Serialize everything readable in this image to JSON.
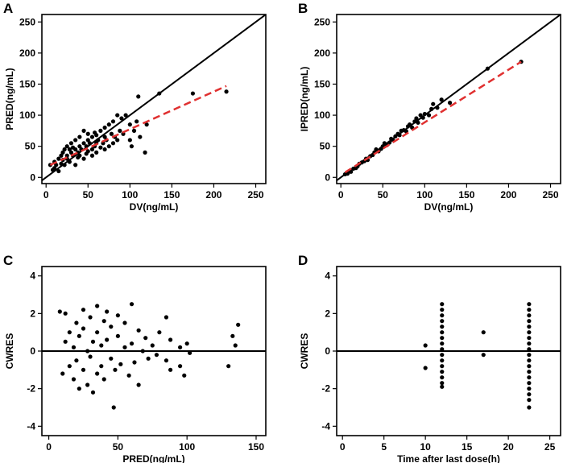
{
  "chart_data": [
    {
      "panel": "A",
      "type": "scatter",
      "xlabel": "DV(ng/mL)",
      "ylabel": "PRED(ng/mL)",
      "xlim": [
        -5,
        262
      ],
      "ylim": [
        -10,
        262
      ],
      "xticks": [
        0,
        50,
        100,
        150,
        200,
        250
      ],
      "yticks": [
        0,
        50,
        100,
        150,
        200,
        250
      ],
      "identity_line": true,
      "trend_line": {
        "color": "#e03030",
        "x": [
          5,
          215
        ],
        "y": [
          20,
          147
        ]
      },
      "points": [
        [
          5,
          20
        ],
        [
          8,
          12
        ],
        [
          10,
          15
        ],
        [
          10,
          25
        ],
        [
          12,
          20
        ],
        [
          15,
          10
        ],
        [
          15,
          30
        ],
        [
          18,
          35
        ],
        [
          18,
          22
        ],
        [
          20,
          28
        ],
        [
          20,
          40
        ],
        [
          22,
          20
        ],
        [
          22,
          45
        ],
        [
          25,
          35
        ],
        [
          25,
          30
        ],
        [
          25,
          50
        ],
        [
          28,
          45
        ],
        [
          28,
          25
        ],
        [
          30,
          40
        ],
        [
          30,
          55
        ],
        [
          32,
          35
        ],
        [
          32,
          48
        ],
        [
          35,
          20
        ],
        [
          35,
          45
        ],
        [
          35,
          60
        ],
        [
          38,
          40
        ],
        [
          38,
          32
        ],
        [
          40,
          50
        ],
        [
          40,
          35
        ],
        [
          40,
          65
        ],
        [
          42,
          45
        ],
        [
          45,
          55
        ],
        [
          45,
          30
        ],
        [
          45,
          75
        ],
        [
          48,
          50
        ],
        [
          48,
          38
        ],
        [
          50,
          60
        ],
        [
          50,
          42
        ],
        [
          50,
          70
        ],
        [
          52,
          55
        ],
        [
          55,
          45
        ],
        [
          55,
          65
        ],
        [
          55,
          35
        ],
        [
          58,
          72
        ],
        [
          58,
          50
        ],
        [
          60,
          40
        ],
        [
          60,
          55
        ],
        [
          60,
          68
        ],
        [
          62,
          60
        ],
        [
          65,
          48
        ],
        [
          65,
          75
        ],
        [
          68,
          55
        ],
        [
          70,
          65
        ],
        [
          70,
          45
        ],
        [
          70,
          80
        ],
        [
          72,
          60
        ],
        [
          75,
          85
        ],
        [
          75,
          50
        ],
        [
          78,
          70
        ],
        [
          80,
          55
        ],
        [
          80,
          90
        ],
        [
          82,
          65
        ],
        [
          85,
          100
        ],
        [
          85,
          60
        ],
        [
          88,
          75
        ],
        [
          90,
          95
        ],
        [
          92,
          70
        ],
        [
          95,
          100
        ],
        [
          100,
          60
        ],
        [
          100,
          85
        ],
        [
          102,
          50
        ],
        [
          105,
          75
        ],
        [
          108,
          90
        ],
        [
          110,
          130
        ],
        [
          112,
          65
        ],
        [
          118,
          40
        ],
        [
          120,
          85
        ],
        [
          135,
          135
        ],
        [
          175,
          135
        ],
        [
          215,
          138
        ]
      ]
    },
    {
      "panel": "B",
      "type": "scatter",
      "xlabel": "DV(ng/mL)",
      "ylabel": "IPRED(ng/mL)",
      "xlim": [
        -5,
        262
      ],
      "ylim": [
        -10,
        262
      ],
      "xticks": [
        0,
        50,
        100,
        150,
        200,
        250
      ],
      "yticks": [
        0,
        50,
        100,
        150,
        200,
        250
      ],
      "identity_line": true,
      "trend_line": {
        "color": "#e03030",
        "x": [
          5,
          215
        ],
        "y": [
          8,
          186
        ]
      },
      "points": [
        [
          5,
          5
        ],
        [
          8,
          6
        ],
        [
          10,
          10
        ],
        [
          12,
          9
        ],
        [
          15,
          14
        ],
        [
          18,
          15
        ],
        [
          20,
          18
        ],
        [
          22,
          22
        ],
        [
          25,
          24
        ],
        [
          28,
          26
        ],
        [
          30,
          30
        ],
        [
          32,
          28
        ],
        [
          35,
          34
        ],
        [
          38,
          36
        ],
        [
          40,
          40
        ],
        [
          42,
          45
        ],
        [
          45,
          42
        ],
        [
          48,
          46
        ],
        [
          50,
          50
        ],
        [
          52,
          55
        ],
        [
          55,
          52
        ],
        [
          58,
          56
        ],
        [
          60,
          62
        ],
        [
          62,
          60
        ],
        [
          65,
          66
        ],
        [
          68,
          70
        ],
        [
          70,
          68
        ],
        [
          72,
          75
        ],
        [
          75,
          76
        ],
        [
          78,
          74
        ],
        [
          80,
          82
        ],
        [
          82,
          85
        ],
        [
          85,
          80
        ],
        [
          88,
          90
        ],
        [
          90,
          95
        ],
        [
          92,
          88
        ],
        [
          95,
          100
        ],
        [
          98,
          96
        ],
        [
          100,
          102
        ],
        [
          105,
          100
        ],
        [
          108,
          110
        ],
        [
          110,
          118
        ],
        [
          115,
          112
        ],
        [
          120,
          125
        ],
        [
          130,
          120
        ],
        [
          175,
          175
        ],
        [
          215,
          186
        ]
      ]
    },
    {
      "panel": "C",
      "type": "scatter",
      "xlabel": "PRED(ng/mL)",
      "ylabel": "CWRES",
      "xlim": [
        -5,
        157
      ],
      "ylim": [
        -4.5,
        4.5
      ],
      "xticks": [
        0,
        50,
        100,
        150
      ],
      "yticks": [
        -4,
        -2,
        0,
        2,
        4
      ],
      "zero_line": true,
      "points": [
        [
          8,
          2.1
        ],
        [
          10,
          -1.2
        ],
        [
          12,
          0.5
        ],
        [
          12,
          2.0
        ],
        [
          15,
          -0.8
        ],
        [
          15,
          1.0
        ],
        [
          18,
          -1.5
        ],
        [
          18,
          0.2
        ],
        [
          20,
          1.5
        ],
        [
          20,
          -0.5
        ],
        [
          22,
          -2.0
        ],
        [
          22,
          0.8
        ],
        [
          25,
          1.2
        ],
        [
          25,
          -1.0
        ],
        [
          25,
          2.2
        ],
        [
          28,
          0.0
        ],
        [
          28,
          -1.8
        ],
        [
          30,
          1.8
        ],
        [
          30,
          -0.3
        ],
        [
          32,
          0.5
        ],
        [
          32,
          -2.2
        ],
        [
          35,
          1.0
        ],
        [
          35,
          -1.2
        ],
        [
          35,
          2.4
        ],
        [
          38,
          0.3
        ],
        [
          38,
          -0.8
        ],
        [
          40,
          1.6
        ],
        [
          40,
          -1.5
        ],
        [
          42,
          0.6
        ],
        [
          42,
          2.1
        ],
        [
          45,
          -0.4
        ],
        [
          45,
          1.3
        ],
        [
          47,
          -3.0
        ],
        [
          48,
          -1.0
        ],
        [
          50,
          0.8
        ],
        [
          50,
          1.9
        ],
        [
          52,
          -0.7
        ],
        [
          55,
          0.2
        ],
        [
          55,
          1.5
        ],
        [
          58,
          -1.3
        ],
        [
          60,
          2.5
        ],
        [
          60,
          0.4
        ],
        [
          62,
          -0.6
        ],
        [
          65,
          1.1
        ],
        [
          65,
          -1.8
        ],
        [
          68,
          0.0
        ],
        [
          70,
          0.7
        ],
        [
          72,
          -0.4
        ],
        [
          75,
          0.3
        ],
        [
          78,
          -0.2
        ],
        [
          80,
          1.0
        ],
        [
          85,
          1.8
        ],
        [
          85,
          -0.5
        ],
        [
          88,
          0.6
        ],
        [
          88,
          -1.0
        ],
        [
          95,
          -0.8
        ],
        [
          95,
          0.2
        ],
        [
          98,
          -1.3
        ],
        [
          100,
          0.4
        ],
        [
          102,
          -0.1
        ],
        [
          130,
          -0.8
        ],
        [
          133,
          0.8
        ],
        [
          135,
          0.3
        ],
        [
          137,
          1.4
        ]
      ]
    },
    {
      "panel": "D",
      "type": "scatter",
      "xlabel": "Time after last dose(h)",
      "ylabel": "CWRES",
      "xlim": [
        -0.7,
        26.3
      ],
      "ylim": [
        -4.5,
        4.5
      ],
      "xticks": [
        0,
        5,
        10,
        15,
        20,
        25
      ],
      "yticks": [
        -4,
        -2,
        0,
        2,
        4
      ],
      "zero_line": true,
      "points": [
        [
          10,
          0.3
        ],
        [
          10,
          -0.9
        ],
        [
          12,
          2.5
        ],
        [
          12,
          2.2
        ],
        [
          12,
          1.9
        ],
        [
          12,
          1.6
        ],
        [
          12,
          1.3
        ],
        [
          12,
          1.0
        ],
        [
          12,
          0.7
        ],
        [
          12,
          0.4
        ],
        [
          12,
          0.1
        ],
        [
          12,
          -0.2
        ],
        [
          12,
          -0.5
        ],
        [
          12,
          -0.8
        ],
        [
          12,
          -1.1
        ],
        [
          12,
          -1.4
        ],
        [
          12,
          -1.7
        ],
        [
          12,
          -1.9
        ],
        [
          17,
          1.0
        ],
        [
          17,
          -0.2
        ],
        [
          22.5,
          2.5
        ],
        [
          22.5,
          2.2
        ],
        [
          22.5,
          1.9
        ],
        [
          22.5,
          1.6
        ],
        [
          22.5,
          1.3
        ],
        [
          22.5,
          1.0
        ],
        [
          22.5,
          0.7
        ],
        [
          22.5,
          0.4
        ],
        [
          22.5,
          0.1
        ],
        [
          22.5,
          -0.2
        ],
        [
          22.5,
          -0.5
        ],
        [
          22.5,
          -0.8
        ],
        [
          22.5,
          -1.1
        ],
        [
          22.5,
          -1.4
        ],
        [
          22.5,
          -1.7
        ],
        [
          22.5,
          -2.0
        ],
        [
          22.5,
          -2.3
        ],
        [
          22.5,
          -2.6
        ],
        [
          22.5,
          -3.0
        ]
      ]
    }
  ]
}
